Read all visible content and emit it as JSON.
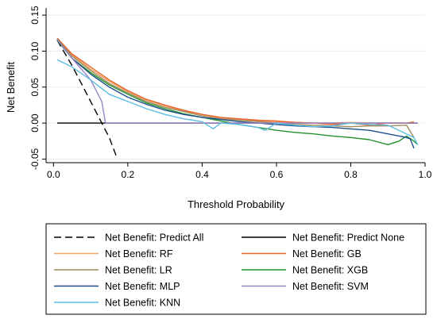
{
  "chart_data": {
    "type": "line",
    "xlabel": "Threshold Probability",
    "ylabel": "Net Benefit",
    "xlim": [
      -0.02,
      1.0
    ],
    "ylim": [
      -0.055,
      0.16
    ],
    "xticks": [
      0.0,
      0.2,
      0.4,
      0.6,
      0.8,
      1.0
    ],
    "xtick_labels": [
      "0.0",
      "0.2",
      "0.4",
      "0.6",
      "0.8",
      "1.0"
    ],
    "yticks": [
      -0.05,
      0.0,
      0.05,
      0.1,
      0.15
    ],
    "ytick_labels": [
      "-0.05",
      "0.00",
      "0.05",
      "0.10",
      "0.15"
    ],
    "grid": "horizontal",
    "legend_position": "bottom",
    "series": [
      {
        "name": "Net Benefit: Predict All",
        "color": "#000000",
        "dash": "dashed",
        "x": [
          0.01,
          0.05,
          0.1,
          0.13,
          0.15,
          0.172
        ],
        "y": [
          0.115,
          0.08,
          0.03,
          0.0,
          -0.02,
          -0.05
        ]
      },
      {
        "name": "Net Benefit: Predict None",
        "color": "#000000",
        "dash": "solid",
        "x": [
          0.01,
          0.98
        ],
        "y": [
          0.0,
          0.0
        ]
      },
      {
        "name": "Net Benefit: RF",
        "color": "#f4a261",
        "dash": "solid",
        "x": [
          0.01,
          0.05,
          0.1,
          0.15,
          0.2,
          0.25,
          0.3,
          0.35,
          0.4,
          0.45,
          0.5,
          0.55,
          0.6,
          0.65,
          0.7,
          0.75,
          0.8,
          0.85,
          0.9,
          0.95,
          0.97
        ],
        "y": [
          0.118,
          0.095,
          0.075,
          0.058,
          0.044,
          0.032,
          0.024,
          0.017,
          0.012,
          0.008,
          0.005,
          0.003,
          0.002,
          0.001,
          0.0,
          0.0,
          0.001,
          0.0,
          0.0,
          0.0,
          0.002
        ]
      },
      {
        "name": "Net Benefit: GB",
        "color": "#e8632a",
        "dash": "solid",
        "x": [
          0.01,
          0.05,
          0.1,
          0.15,
          0.2,
          0.25,
          0.3,
          0.35,
          0.4,
          0.45,
          0.5,
          0.55,
          0.6,
          0.65,
          0.7,
          0.75,
          0.8,
          0.85,
          0.9,
          0.95,
          0.97
        ],
        "y": [
          0.118,
          0.096,
          0.078,
          0.06,
          0.045,
          0.033,
          0.025,
          0.018,
          0.012,
          0.008,
          0.006,
          0.004,
          0.003,
          0.001,
          0.0,
          -0.002,
          0.0,
          -0.003,
          0.0,
          0.0,
          0.001
        ]
      },
      {
        "name": "Net Benefit: LR",
        "color": "#a08a5c",
        "dash": "solid",
        "x": [
          0.01,
          0.05,
          0.1,
          0.15,
          0.2,
          0.25,
          0.3,
          0.35,
          0.4,
          0.45,
          0.5,
          0.55,
          0.6,
          0.65,
          0.7,
          0.75,
          0.8,
          0.85,
          0.9,
          0.95,
          0.97
        ],
        "y": [
          0.117,
          0.093,
          0.073,
          0.055,
          0.042,
          0.03,
          0.022,
          0.016,
          0.01,
          0.006,
          0.004,
          0.002,
          0.0,
          -0.002,
          -0.003,
          -0.004,
          -0.005,
          -0.004,
          -0.004,
          -0.003,
          -0.02
        ]
      },
      {
        "name": "Net Benefit: XGB",
        "color": "#22922a",
        "dash": "solid",
        "x": [
          0.01,
          0.05,
          0.1,
          0.15,
          0.2,
          0.25,
          0.3,
          0.35,
          0.4,
          0.45,
          0.5,
          0.55,
          0.6,
          0.65,
          0.7,
          0.75,
          0.8,
          0.85,
          0.9,
          0.93,
          0.95,
          0.97,
          0.98
        ],
        "y": [
          0.115,
          0.09,
          0.07,
          0.053,
          0.04,
          0.028,
          0.02,
          0.013,
          0.008,
          0.003,
          -0.002,
          -0.006,
          -0.01,
          -0.013,
          -0.015,
          -0.018,
          -0.02,
          -0.023,
          -0.03,
          -0.025,
          -0.018,
          -0.025,
          -0.03
        ]
      },
      {
        "name": "Net Benefit: MLP",
        "color": "#1d4f8c",
        "dash": "solid",
        "x": [
          0.01,
          0.05,
          0.1,
          0.15,
          0.2,
          0.25,
          0.3,
          0.35,
          0.4,
          0.45,
          0.5,
          0.55,
          0.6,
          0.65,
          0.7,
          0.75,
          0.8,
          0.85,
          0.9,
          0.93,
          0.95,
          0.96,
          0.97
        ],
        "y": [
          0.116,
          0.09,
          0.068,
          0.05,
          0.036,
          0.026,
          0.018,
          0.012,
          0.008,
          0.005,
          0.002,
          0.0,
          -0.002,
          -0.004,
          -0.005,
          -0.006,
          -0.008,
          -0.01,
          -0.015,
          -0.018,
          -0.02,
          -0.022,
          -0.035
        ]
      },
      {
        "name": "Net Benefit: SVM",
        "color": "#9a84c8",
        "dash": "solid",
        "x": [
          0.01,
          0.05,
          0.1,
          0.12,
          0.13,
          0.14,
          0.2,
          0.4,
          0.6,
          0.8,
          0.98
        ],
        "y": [
          0.116,
          0.09,
          0.06,
          0.04,
          0.03,
          0.0,
          0.0,
          0.0,
          0.0,
          0.0,
          0.0
        ]
      },
      {
        "name": "Net Benefit: KNN",
        "color": "#5bbde3",
        "dash": "solid",
        "x": [
          0.01,
          0.05,
          0.1,
          0.15,
          0.2,
          0.25,
          0.3,
          0.35,
          0.4,
          0.43,
          0.45,
          0.5,
          0.55,
          0.57,
          0.6,
          0.65,
          0.7,
          0.75,
          0.8,
          0.85,
          0.9,
          0.95,
          0.97,
          0.98
        ],
        "y": [
          0.088,
          0.078,
          0.06,
          0.04,
          0.03,
          0.02,
          0.012,
          0.006,
          0.002,
          -0.008,
          0.0,
          -0.002,
          -0.006,
          -0.01,
          0.0,
          -0.003,
          -0.005,
          -0.004,
          0.0,
          -0.002,
          -0.003,
          -0.015,
          -0.02,
          -0.03
        ]
      }
    ]
  }
}
